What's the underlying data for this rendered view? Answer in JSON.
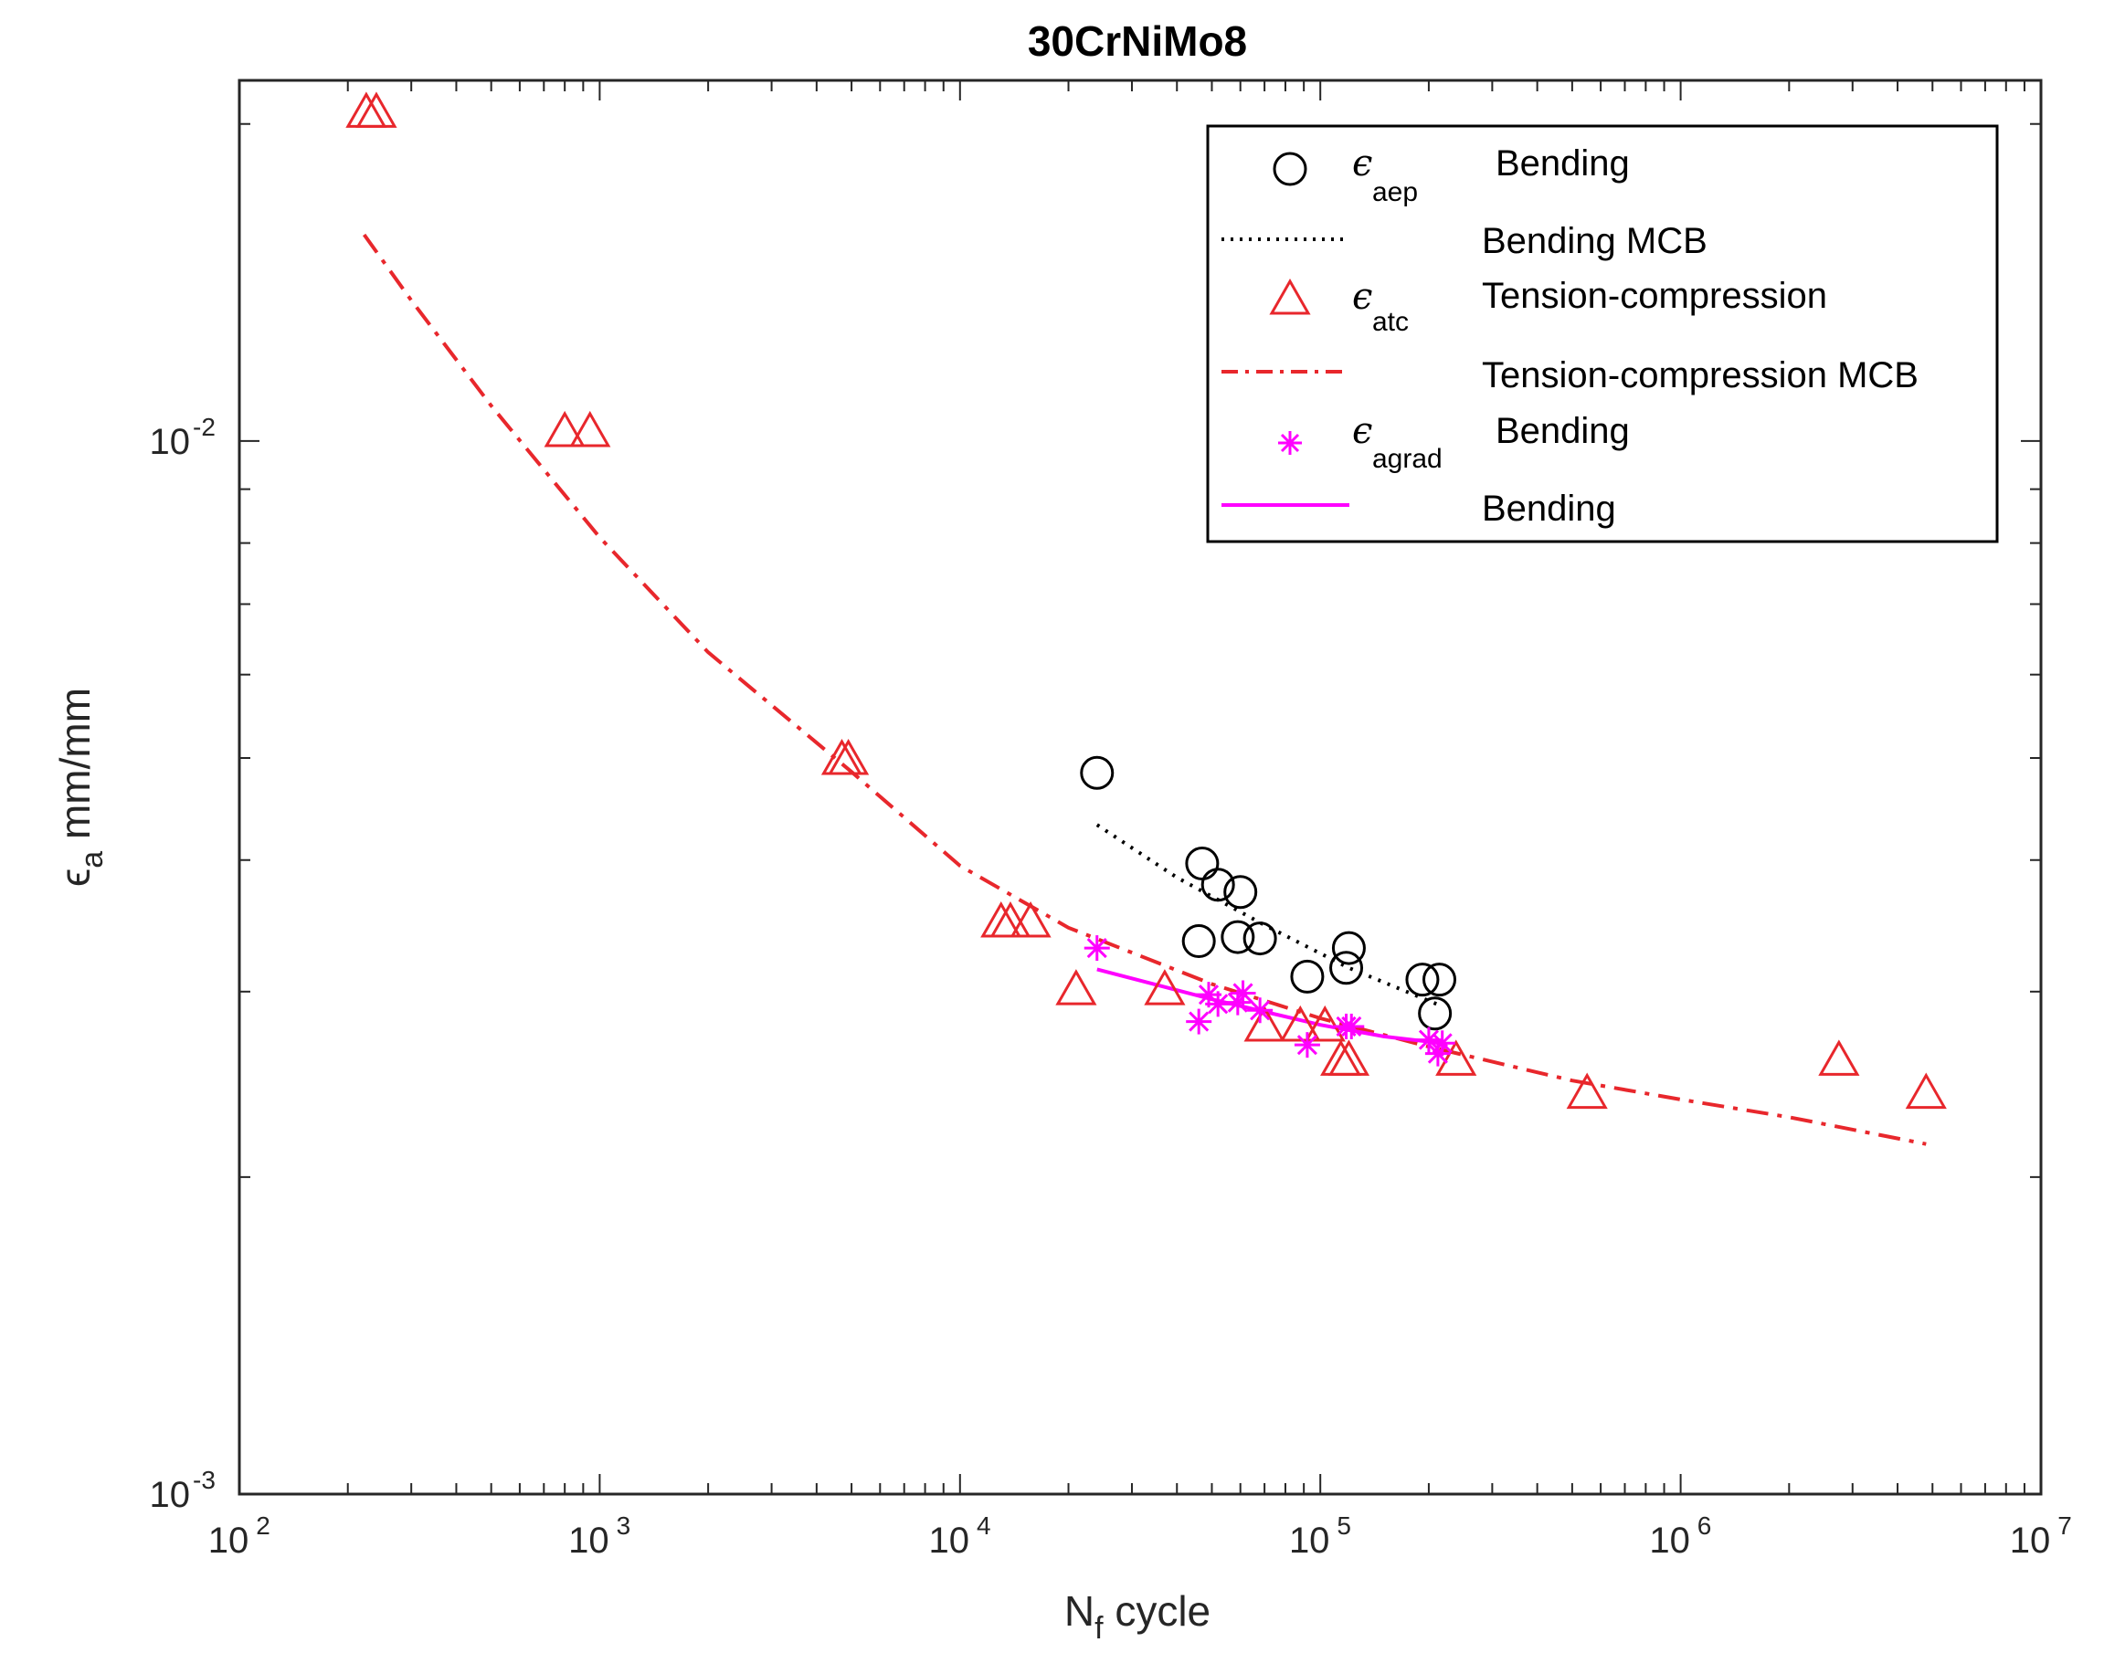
{
  "chart_data": {
    "type": "scatter",
    "title": "30CrNiMo8",
    "x_scale": "log",
    "y_scale": "log",
    "xlim": [
      100,
      10000000
    ],
    "ylim": [
      0.001,
      0.022
    ],
    "xlabel": {
      "base": "N",
      "sub": "f",
      "rest": " cycle"
    },
    "ylabel": {
      "base": "ϵ",
      "sub": "a",
      "rest": " mm/mm"
    },
    "x_ticks": [
      {
        "value": 100,
        "base": "10",
        "exp": "2"
      },
      {
        "value": 1000,
        "base": "10",
        "exp": "3"
      },
      {
        "value": 10000,
        "base": "10",
        "exp": "4"
      },
      {
        "value": 100000,
        "base": "10",
        "exp": "5"
      },
      {
        "value": 1000000,
        "base": "10",
        "exp": "6"
      },
      {
        "value": 10000000,
        "base": "10",
        "exp": "7"
      }
    ],
    "y_ticks": [
      {
        "value": 0.001,
        "base": "10",
        "exp": "-3"
      },
      {
        "value": 0.01,
        "base": "10",
        "exp": "-2"
      }
    ],
    "series": [
      {
        "name": "Bending",
        "symbol": "ϵ",
        "sub": "aep",
        "marker": "circle",
        "color": "#000000",
        "points": [
          [
            24000,
            0.00484
          ],
          [
            47000,
            0.00397
          ],
          [
            52000,
            0.00379
          ],
          [
            60000,
            0.00373
          ],
          [
            46000,
            0.00335
          ],
          [
            59000,
            0.00338
          ],
          [
            68000,
            0.00337
          ],
          [
            92000,
            0.0031
          ],
          [
            120000,
            0.0033
          ],
          [
            118000,
            0.00316
          ],
          [
            192000,
            0.00308
          ],
          [
            214000,
            0.00308
          ],
          [
            208000,
            0.00286
          ]
        ]
      },
      {
        "name": "Bending MCB",
        "marker": "none",
        "line": "dotted",
        "color": "#000000",
        "points": [
          [
            24000,
            0.00432
          ],
          [
            40000,
            0.00385
          ],
          [
            70000,
            0.00347
          ],
          [
            120000,
            0.00316
          ],
          [
            210000,
            0.00292
          ]
        ]
      },
      {
        "name": "Tension-compression",
        "symbol": "ϵ",
        "sub": "atc",
        "marker": "triangle",
        "color": "#e8272c",
        "points": [
          [
            225,
            0.0205
          ],
          [
            240,
            0.0205
          ],
          [
            800,
            0.0102
          ],
          [
            940,
            0.0102
          ],
          [
            4700,
            0.00498
          ],
          [
            4900,
            0.00498
          ],
          [
            13000,
            0.00349
          ],
          [
            13800,
            0.00349
          ],
          [
            15700,
            0.00349
          ],
          [
            21000,
            0.00301
          ],
          [
            37000,
            0.00301
          ],
          [
            70000,
            0.00278
          ],
          [
            88000,
            0.00278
          ],
          [
            103000,
            0.00278
          ],
          [
            114000,
            0.00258
          ],
          [
            120000,
            0.00258
          ],
          [
            238000,
            0.00258
          ],
          [
            550000,
            0.0024
          ],
          [
            2750000,
            0.00258
          ],
          [
            4800000,
            0.0024
          ]
        ]
      },
      {
        "name": "Tension-compression MCB",
        "marker": "none",
        "line": "dashdot",
        "color": "#e8272c",
        "points": [
          [
            222,
            0.0157
          ],
          [
            300,
            0.0136
          ],
          [
            500,
            0.0108
          ],
          [
            1000,
            0.0081
          ],
          [
            2000,
            0.0063
          ],
          [
            5000,
            0.00485
          ],
          [
            10000,
            0.00395
          ],
          [
            20000,
            0.00345
          ],
          [
            50000,
            0.00305
          ],
          [
            100000,
            0.00283
          ],
          [
            200000,
            0.00266
          ],
          [
            500000,
            0.00247
          ],
          [
            1000000,
            0.00237
          ],
          [
            2000000,
            0.00228
          ],
          [
            4800000,
            0.00215
          ]
        ]
      },
      {
        "name": "Bending",
        "symbol": "ϵ",
        "sub": "agrad",
        "marker": "asterisk",
        "color": "#ff00ff",
        "points": [
          [
            24000,
            0.0033
          ],
          [
            46000,
            0.00281
          ],
          [
            49000,
            0.00298
          ],
          [
            52000,
            0.00292
          ],
          [
            59000,
            0.00293
          ],
          [
            61000,
            0.00299
          ],
          [
            68000,
            0.00288
          ],
          [
            92000,
            0.00267
          ],
          [
            118000,
            0.00278
          ],
          [
            122000,
            0.00278
          ],
          [
            200000,
            0.0027
          ],
          [
            212000,
            0.00262
          ],
          [
            218000,
            0.00268
          ]
        ]
      },
      {
        "name": "Bending",
        "marker": "none",
        "line": "solid",
        "color": "#ff00ff",
        "points": [
          [
            24000,
            0.00315
          ],
          [
            50000,
            0.00295
          ],
          [
            100000,
            0.00279
          ],
          [
            150000,
            0.00272
          ],
          [
            218000,
            0.00268
          ]
        ]
      }
    ],
    "legend": {
      "position": "top-right",
      "entries": [
        {
          "symbol": "ϵ",
          "sub": "aep",
          "label": "Bending",
          "style": "circle",
          "color": "#000000"
        },
        {
          "symbol": "",
          "sub": "",
          "label": "Bending MCB",
          "style": "dotted",
          "color": "#000000"
        },
        {
          "symbol": "ϵ",
          "sub": "atc",
          "label": "Tension-compression",
          "style": "triangle",
          "color": "#e8272c"
        },
        {
          "symbol": "",
          "sub": "",
          "label": "Tension-compression MCB",
          "style": "dashdot",
          "color": "#e8272c"
        },
        {
          "symbol": "ϵ",
          "sub": "agrad",
          "label": "Bending",
          "style": "asterisk",
          "color": "#ff00ff"
        },
        {
          "symbol": "",
          "sub": "",
          "label": "Bending",
          "style": "solid",
          "color": "#ff00ff"
        }
      ]
    }
  }
}
